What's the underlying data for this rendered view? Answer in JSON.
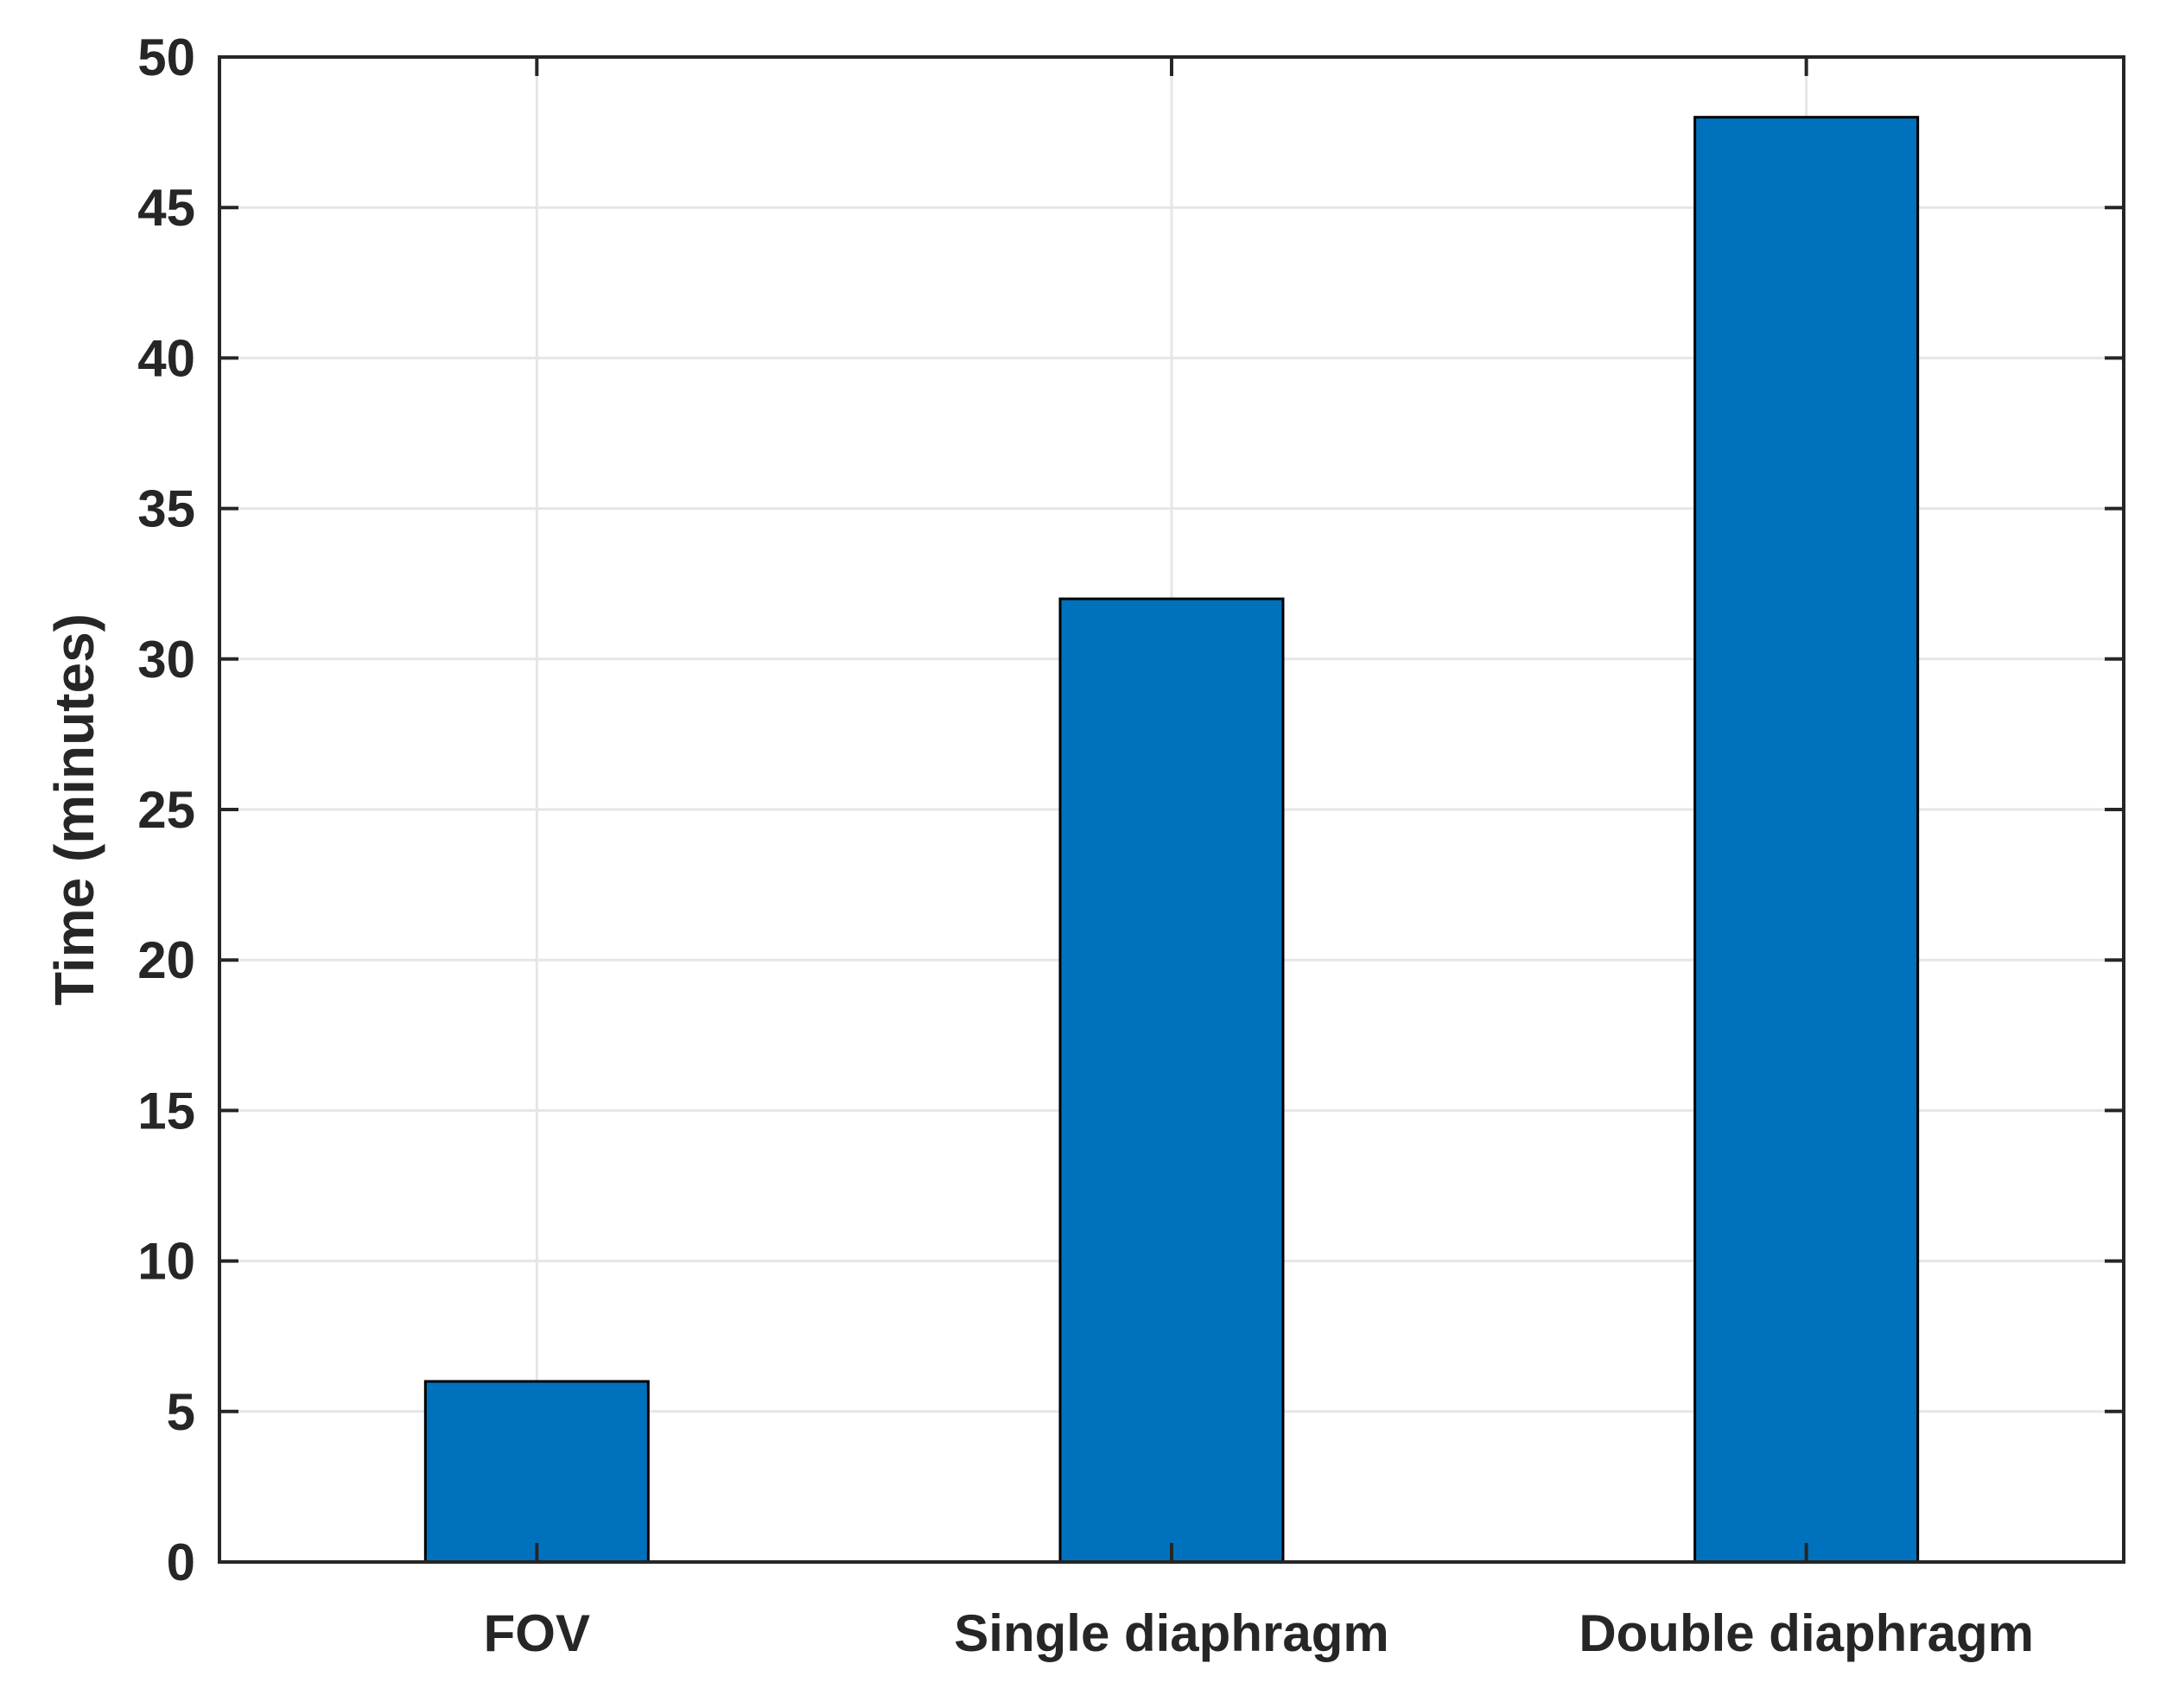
{
  "chart_data": {
    "type": "bar",
    "title": "",
    "xlabel": "",
    "ylabel": "Time (minutes)",
    "categories": [
      "FOV",
      "Single diaphragm",
      "Double diaphragm"
    ],
    "values": [
      6,
      32,
      48
    ],
    "ylim": [
      0,
      50
    ],
    "yticks": [
      0,
      5,
      10,
      15,
      20,
      25,
      30,
      35,
      40,
      45,
      50
    ],
    "grid": true,
    "legend": "none",
    "colors": {
      "bar": "#0072BD",
      "bar_edge": "#000000",
      "axis": "#262626",
      "grid": "#e6e6e6",
      "background": "#ffffff"
    }
  }
}
